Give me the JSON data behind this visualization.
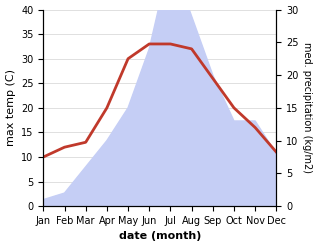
{
  "months": [
    "Jan",
    "Feb",
    "Mar",
    "Apr",
    "May",
    "Jun",
    "Jul",
    "Aug",
    "Sep",
    "Oct",
    "Nov",
    "Dec"
  ],
  "temp_max": [
    10,
    12,
    13,
    20,
    30,
    33,
    33,
    32,
    26,
    20,
    16,
    11
  ],
  "precipitation": [
    1,
    2,
    6,
    10,
    15,
    24,
    38,
    29,
    20,
    13,
    13,
    8
  ],
  "temp_ylim": [
    0,
    40
  ],
  "precip_ylim": [
    0,
    30
  ],
  "temp_color": "#c0392b",
  "precip_fill_color": "#c5cef5",
  "xlabel": "date (month)",
  "ylabel_left": "max temp (C)",
  "ylabel_right": "med. precipitation (kg/m2)",
  "bg_color": "#ffffff",
  "temp_linewidth": 2.0,
  "xlabel_fontsize": 8,
  "ylabel_fontsize": 8,
  "tick_fontsize": 7
}
